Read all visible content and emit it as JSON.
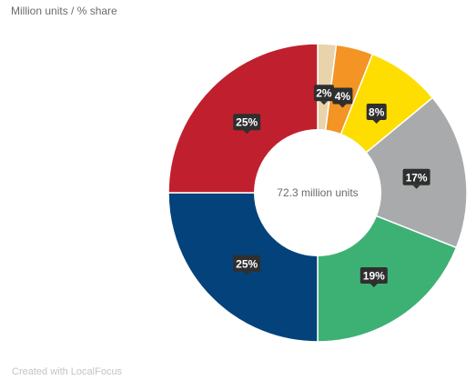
{
  "header": {
    "subtitle": "Million units / % share"
  },
  "footer": {
    "credit": "Created with LocalFocus"
  },
  "chart_data": {
    "type": "pie",
    "subtitle": "Million units / % share",
    "center_label": "72.3 million units",
    "slices": [
      {
        "label": "2%",
        "value": 2,
        "color": "#e8d3ab"
      },
      {
        "label": "4%",
        "value": 4,
        "color": "#f39425"
      },
      {
        "label": "8%",
        "value": 8,
        "color": "#fedd00"
      },
      {
        "label": "17%",
        "value": 17,
        "color": "#a9aaab"
      },
      {
        "label": "19%",
        "value": 19,
        "color": "#3db174"
      },
      {
        "label": "25%",
        "value": 25,
        "color": "#04427b"
      },
      {
        "label": "25%",
        "value": 25,
        "color": "#c0202e"
      }
    ]
  }
}
